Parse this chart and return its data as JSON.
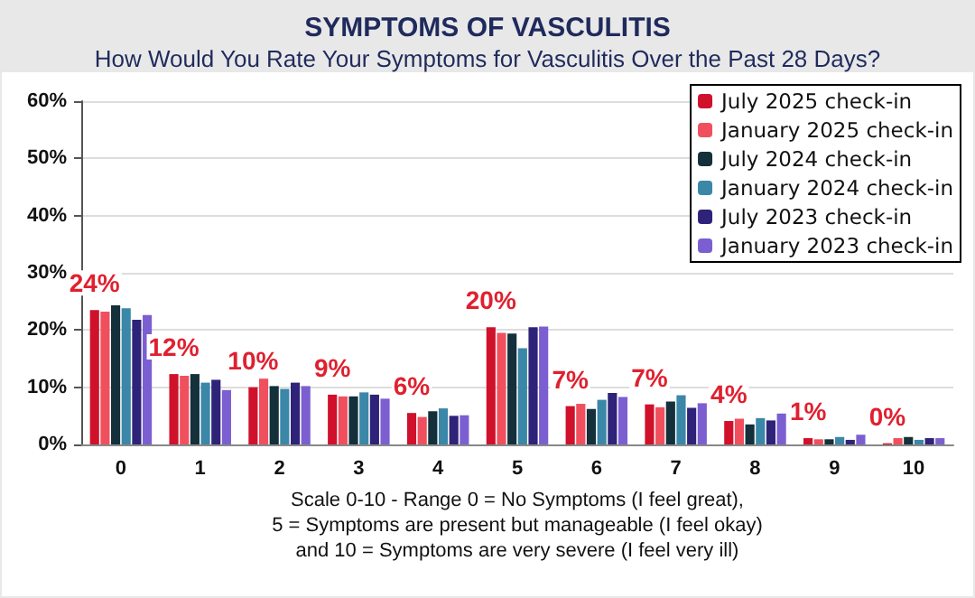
{
  "chart_data": {
    "type": "bar",
    "title": "SYMPTOMS OF VASCULITIS",
    "subtitle": "How Would You Rate Your Symptoms for Vasculitis Over the Past 28 Days?",
    "xlabel": "Scale 0-10 - Range 0 = No Symptoms (I feel great),\n5 = Symptoms are present but manageable (I feel okay)\nand 10 = Symptoms are very severe (I feel very ill)",
    "categories": [
      "0",
      "1",
      "2",
      "3",
      "4",
      "5",
      "6",
      "7",
      "8",
      "9",
      "10"
    ],
    "series": [
      {
        "name": "July 2025 check-in",
        "color": "#d0112b",
        "values": [
          23.5,
          12.3,
          10,
          8.7,
          5.5,
          20.5,
          6.7,
          7,
          4.1,
          1.1,
          0.2
        ],
        "value_labels": [
          "24%",
          "12%",
          "10%",
          "9%",
          "6%",
          "20%",
          "7%",
          "7%",
          "4%",
          "1%",
          "0%"
        ]
      },
      {
        "name": "January 2025 check-in",
        "color": "#f0505e",
        "values": [
          23.2,
          12,
          11.5,
          8.4,
          4.8,
          19.5,
          7.1,
          6.5,
          4.5,
          0.9,
          1.1
        ]
      },
      {
        "name": "July 2024 check-in",
        "color": "#13303b",
        "values": [
          24.3,
          12.3,
          10.2,
          8.4,
          5.8,
          19.4,
          6.2,
          7.5,
          3.5,
          0.9,
          1.3
        ]
      },
      {
        "name": "January 2024 check-in",
        "color": "#3a87a8",
        "values": [
          23.8,
          10.8,
          9.7,
          9.1,
          6.3,
          16.8,
          7.8,
          8.6,
          4.6,
          1.3,
          0.8
        ]
      },
      {
        "name": "July 2023 check-in",
        "color": "#2e2378",
        "values": [
          21.8,
          11.3,
          10.8,
          8.7,
          5,
          20.5,
          9,
          6.4,
          4.2,
          0.8,
          1.1
        ]
      },
      {
        "name": "January 2023 check-in",
        "color": "#7b5fd1",
        "values": [
          22.6,
          9.5,
          10.2,
          8,
          5.1,
          20.6,
          8.3,
          7.2,
          5.4,
          1.7,
          1.1
        ]
      }
    ],
    "ylim": [
      0,
      60
    ],
    "yticks": [
      {
        "value": 0,
        "label": "0%"
      },
      {
        "value": 10,
        "label": "10%"
      },
      {
        "value": 20,
        "label": "20%"
      },
      {
        "value": 30,
        "label": "30%"
      },
      {
        "value": 40,
        "label": "40%"
      },
      {
        "value": 50,
        "label": "50%"
      },
      {
        "value": 60,
        "label": "60%"
      }
    ],
    "grid": "y",
    "legend": "top right"
  }
}
